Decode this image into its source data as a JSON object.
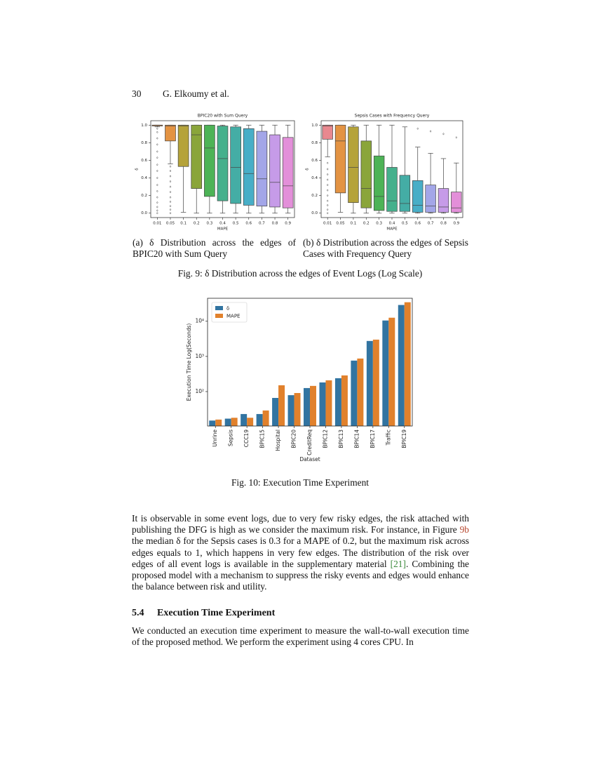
{
  "header": {
    "page_number": "30",
    "authors": "G. Elkoumy et al."
  },
  "chart_data": [
    {
      "type": "box",
      "title": "BPIC20 with Sum Query",
      "x_label": "MAPE",
      "y_label": "δ",
      "categories": [
        "0.01",
        "0.05",
        "0.1",
        "0.2",
        "0.3",
        "0.4",
        "0.5",
        "0.6",
        "0.7",
        "0.8",
        "0.9"
      ],
      "colors": [
        "#e8944a",
        "#e39343",
        "#b5a33a",
        "#8aa53a",
        "#4db356",
        "#45b08c",
        "#44ada5",
        "#48aec7",
        "#a3a6e8",
        "#c69be8",
        "#e38fd9"
      ],
      "boxes": [
        {
          "whislo": 0.98,
          "q1": 0.99,
          "med": 1.0,
          "q3": 1.0,
          "whishi": 1.0,
          "outliers": [
            0.0,
            0.03,
            0.07,
            0.12,
            0.18,
            0.25,
            0.32,
            0.4,
            0.48,
            0.55,
            0.63,
            0.7,
            0.78,
            0.85,
            0.92,
            0.96
          ]
        },
        {
          "whislo": 0.56,
          "q1": 0.82,
          "med": 0.99,
          "q3": 1.0,
          "whishi": 1.0,
          "outliers": [
            0.0,
            0.04,
            0.08,
            0.13,
            0.18,
            0.24,
            0.3,
            0.36,
            0.42,
            0.48,
            0.53
          ]
        },
        {
          "whislo": 0.01,
          "q1": 0.53,
          "med": 0.99,
          "q3": 1.0,
          "whishi": 1.0,
          "outliers": []
        },
        {
          "whislo": 0.0,
          "q1": 0.28,
          "med": 0.89,
          "q3": 1.0,
          "whishi": 1.0,
          "outliers": []
        },
        {
          "whislo": 0.0,
          "q1": 0.19,
          "med": 0.74,
          "q3": 1.0,
          "whishi": 1.0,
          "outliers": []
        },
        {
          "whislo": 0.0,
          "q1": 0.14,
          "med": 0.62,
          "q3": 0.99,
          "whishi": 1.0,
          "outliers": []
        },
        {
          "whislo": 0.0,
          "q1": 0.11,
          "med": 0.52,
          "q3": 0.98,
          "whishi": 1.0,
          "outliers": []
        },
        {
          "whislo": 0.0,
          "q1": 0.09,
          "med": 0.45,
          "q3": 0.96,
          "whishi": 1.0,
          "outliers": []
        },
        {
          "whislo": 0.0,
          "q1": 0.08,
          "med": 0.39,
          "q3": 0.93,
          "whishi": 1.0,
          "outliers": []
        },
        {
          "whislo": 0.0,
          "q1": 0.07,
          "med": 0.35,
          "q3": 0.89,
          "whishi": 1.0,
          "outliers": []
        },
        {
          "whislo": 0.0,
          "q1": 0.06,
          "med": 0.31,
          "q3": 0.86,
          "whishi": 1.0,
          "outliers": []
        }
      ],
      "ylim": [
        -0.05,
        1.05
      ],
      "yticks": [
        {
          "value": 0,
          "label": "0.0"
        },
        0.2,
        0.4,
        0.6,
        0.8,
        {
          "value": 1,
          "label": "1.0"
        }
      ]
    },
    {
      "type": "box",
      "title": "Sepsis Cases with Frequency Query",
      "x_label": "MAPE",
      "y_label": "δ",
      "categories": [
        "0.01",
        "0.05",
        "0.1",
        "0.2",
        "0.3",
        "0.4",
        "0.5",
        "0.6",
        "0.7",
        "0.8",
        "0.9"
      ],
      "colors": [
        "#e8888f",
        "#e39343",
        "#b5a33a",
        "#8aa53a",
        "#4db356",
        "#45b08c",
        "#44ada5",
        "#48aec7",
        "#a3a6e8",
        "#c69be8",
        "#e38fd9"
      ],
      "boxes": [
        {
          "whislo": 0.64,
          "q1": 0.84,
          "med": 0.99,
          "q3": 1.0,
          "whishi": 1.0,
          "outliers": [
            0.0,
            0.04,
            0.09,
            0.14,
            0.2,
            0.26,
            0.32,
            0.38,
            0.44,
            0.5,
            0.57
          ]
        },
        {
          "whislo": 0.01,
          "q1": 0.23,
          "med": 0.82,
          "q3": 1.0,
          "whishi": 1.0,
          "outliers": []
        },
        {
          "whislo": 0.0,
          "q1": 0.12,
          "med": 0.52,
          "q3": 0.98,
          "whishi": 1.0,
          "outliers": []
        },
        {
          "whislo": 0.0,
          "q1": 0.06,
          "med": 0.28,
          "q3": 0.82,
          "whishi": 1.0,
          "outliers": []
        },
        {
          "whislo": 0.0,
          "q1": 0.03,
          "med": 0.19,
          "q3": 0.65,
          "whishi": 1.0,
          "outliers": []
        },
        {
          "whislo": 0.0,
          "q1": 0.02,
          "med": 0.14,
          "q3": 0.52,
          "whishi": 1.0,
          "outliers": []
        },
        {
          "whislo": 0.0,
          "q1": 0.02,
          "med": 0.11,
          "q3": 0.43,
          "whishi": 0.98,
          "outliers": []
        },
        {
          "whislo": 0.0,
          "q1": 0.01,
          "med": 0.09,
          "q3": 0.37,
          "whishi": 0.75,
          "outliers": [
            0.96
          ]
        },
        {
          "whislo": 0.0,
          "q1": 0.01,
          "med": 0.08,
          "q3": 0.32,
          "whishi": 0.68,
          "outliers": [
            0.93
          ]
        },
        {
          "whislo": 0.0,
          "q1": 0.01,
          "med": 0.07,
          "q3": 0.28,
          "whishi": 0.62,
          "outliers": [
            0.9
          ]
        },
        {
          "whislo": 0.0,
          "q1": 0.01,
          "med": 0.06,
          "q3": 0.24,
          "whishi": 0.57,
          "outliers": [
            0.86
          ]
        }
      ],
      "ylim": [
        -0.05,
        1.05
      ],
      "yticks": [
        {
          "value": 0,
          "label": "0.0"
        },
        0.2,
        0.4,
        0.6,
        0.8,
        {
          "value": 1,
          "label": "1.0"
        }
      ]
    },
    {
      "type": "bar",
      "x_label": "Dataset",
      "y_label": "Execution Time Log(Seconds)",
      "categories": [
        "Unrine",
        "Sepsis",
        "CCC19",
        "BPIC15",
        "Hospital",
        "BPIC20",
        "CreditReq",
        "BPIC12",
        "BPIC13",
        "BPIC14",
        "BPIC17",
        "Traffic",
        "BPIC19"
      ],
      "series": [
        {
          "name": "δ",
          "color": "#3274a1",
          "values": [
            15,
            17,
            23,
            23,
            66,
            79,
            126,
            182,
            240,
            760,
            2750,
            10500,
            29000
          ]
        },
        {
          "name": "MAPE",
          "color": "#e1812c",
          "values": [
            16,
            18,
            18,
            29,
            151,
            91,
            145,
            209,
            288,
            870,
            3000,
            12600,
            34700
          ]
        }
      ],
      "log_scale": true,
      "legend": "upper-left",
      "ylim": [
        10.5,
        45000
      ],
      "yticks": [
        {
          "value": 100,
          "label": "10²"
        },
        {
          "value": 1000,
          "label": "10³"
        },
        {
          "value": 10000,
          "label": "10⁴"
        }
      ]
    }
  ],
  "captions": {
    "fig9a": "(a) δ Distribution across the edges of BPIC20 with Sum Query",
    "fig9b": "(b) δ Distribution across the edges of Sepsis Cases with Frequency Query",
    "fig9": "Fig. 9: δ Distribution across the edges of Event Logs (Log Scale)",
    "fig10": "Fig. 10: Execution Time Experiment"
  },
  "body": {
    "paragraph1": [
      "It is observable in some event logs, due to very few risky edges, the risk attached with publishing the DFG is high as we consider the maximum risk. For instance, in Figure ",
      "9b",
      " the median δ for the Sepsis cases is 0.3 for a MAPE of 0.2, but the maximum risk across edges equals to 1, which happens in very few edges. The distribution of the risk over edges of all event logs is available in the supplementary material ",
      "[21]",
      ". Combining the proposed model with a mechanism to suppress the risky events and edges would enhance the balance between risk and utility."
    ],
    "section_number": "5.4",
    "section_title": "Execution Time Experiment",
    "paragraph2": "We conducted an execution time experiment to measure the wall-to-wall execution time of the proposed method. We perform the experiment using 4 cores CPU. In"
  }
}
